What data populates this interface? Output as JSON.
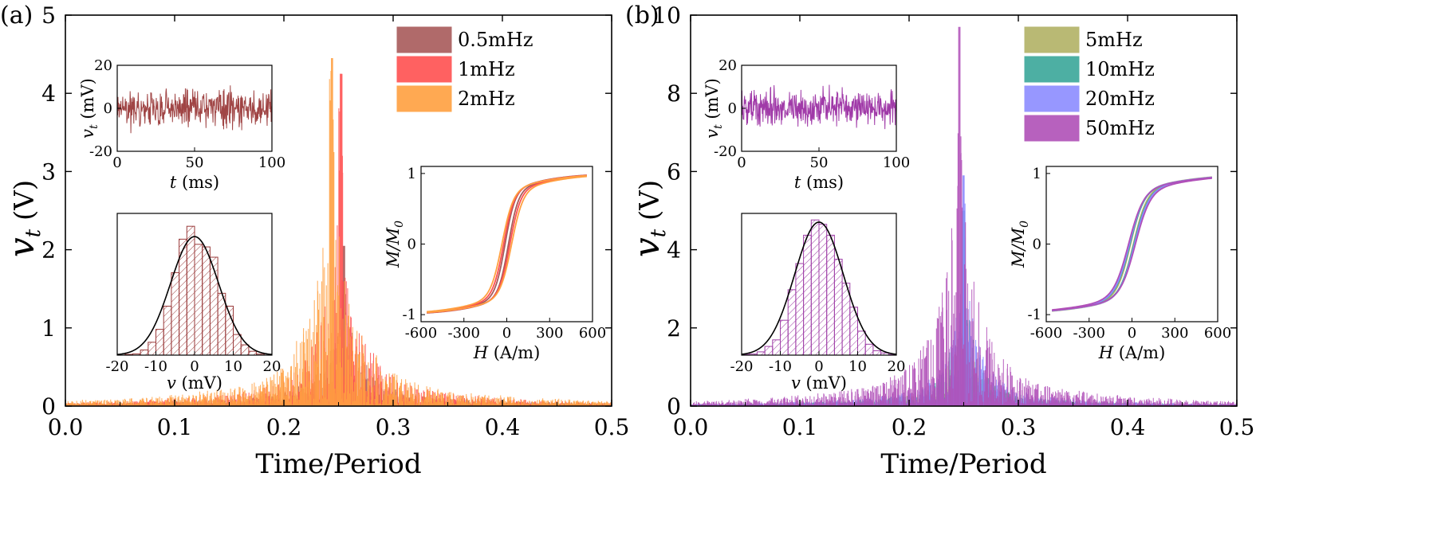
{
  "colors": {
    "c05": "#a85a5a",
    "c1": "#ff5050",
    "c2": "#ffa040",
    "c5": "#b2b266",
    "c10": "#3aa79a",
    "c20": "#8c8cff",
    "c50": "#b050b8",
    "hist_a": "#9a3a3a",
    "hist_b": "#a040a8",
    "trace_a": "#a04545",
    "trace_b": "#a03aa8"
  },
  "chart_data": [
    {
      "panel": "a",
      "panel_label": "(a)",
      "type": "bar",
      "title": "",
      "xlabel": "Time/Period",
      "ylabel": "v_t (V)",
      "ylabel_main": "v",
      "ylabel_sub": "t",
      "ylabel_unit": " (V)",
      "xlim": [
        0,
        0.5
      ],
      "ylim": [
        0,
        5
      ],
      "xticks": [
        "0.0",
        "0.1",
        "0.2",
        "0.3",
        "0.4",
        "0.5"
      ],
      "yticks": [
        "0",
        "1",
        "2",
        "3",
        "4",
        "5"
      ],
      "series": [
        {
          "name": "0.5mHz",
          "color_key": "c05",
          "peak_x": 0.255,
          "peak_y": 2.05,
          "width": 0.018
        },
        {
          "name": "1mHz",
          "color_key": "c1",
          "peak_x": 0.252,
          "peak_y": 4.25,
          "width": 0.016
        },
        {
          "name": "2mHz",
          "color_key": "c2",
          "peak_x": 0.244,
          "peak_y": 4.45,
          "width": 0.02
        }
      ],
      "legend": [
        "0.5mHz",
        "1mHz",
        "2mHz"
      ],
      "insets": {
        "trace": {
          "type": "line",
          "xlabel": "t (ms)",
          "xlabel_var": "t",
          "xlabel_unit": " (ms)",
          "ylabel": "v_t (mV)",
          "ylabel_main": "v",
          "ylabel_sub": "t",
          "ylabel_unit": " (mV)",
          "xlim": [
            0,
            100
          ],
          "ylim": [
            -20,
            20
          ],
          "xticks": [
            "0",
            "50",
            "100"
          ],
          "yticks": [
            "-20",
            "0",
            "20"
          ],
          "amplitude_mV": 4.5
        },
        "histogram": {
          "type": "bar",
          "xlabel": "v (mV)",
          "xlabel_var": "v",
          "xlabel_unit": " (mV)",
          "xlim": [
            -20,
            20
          ],
          "xticks": [
            "-20",
            "-10",
            "0",
            "10",
            "20"
          ],
          "bin_width": 2,
          "bins_center": [
            -17,
            -15,
            -13,
            -11,
            -9,
            -7,
            -5,
            -3,
            -1,
            1,
            3,
            5,
            7,
            9,
            11,
            13,
            15,
            17
          ],
          "counts": [
            0.3,
            0.5,
            2.0,
            5.0,
            10.0,
            19.0,
            32.0,
            45.0,
            50.0,
            43.0,
            42.0,
            38.0,
            24.0,
            19.0,
            8.0,
            4.0,
            1.5,
            0.4
          ],
          "ymax": 55,
          "fit_sigma_mV": 6.2,
          "fit_peak": 46
        },
        "hysteresis": {
          "type": "line",
          "xlabel": "H (A/m)",
          "xlabel_var": "H",
          "xlabel_unit": " (A/m)",
          "ylabel": "M/M_0",
          "ylabel_main": "M/M",
          "ylabel_sub": "0",
          "xlim": [
            -600,
            600
          ],
          "ylim": [
            -1.1,
            1.1
          ],
          "xticks": [
            "-600",
            "-300",
            "0",
            "300",
            "600"
          ],
          "yticks": [
            "-1",
            "0",
            "1"
          ],
          "curves": [
            {
              "color_key": "c05",
              "hc": 12,
              "a": 70
            },
            {
              "color_key": "c1",
              "hc": 22,
              "a": 75
            },
            {
              "color_key": "c2",
              "hc": 34,
              "a": 80
            }
          ]
        }
      }
    },
    {
      "panel": "b",
      "panel_label": "(b)",
      "type": "bar",
      "title": "",
      "xlabel": "Time/Period",
      "ylabel": "v_t (V)",
      "ylabel_main": "v",
      "ylabel_sub": "t",
      "ylabel_unit": " (V)",
      "xlim": [
        0,
        0.5
      ],
      "ylim": [
        0,
        10
      ],
      "xticks": [
        "0.0",
        "0.1",
        "0.2",
        "0.3",
        "0.4",
        "0.5"
      ],
      "yticks": [
        "0",
        "2",
        "4",
        "6",
        "8",
        "10"
      ],
      "series": [
        {
          "name": "5mHz",
          "color_key": "c5",
          "peak_x": 0.25,
          "peak_y": 4.3,
          "width": 0.012
        },
        {
          "name": "10mHz",
          "color_key": "c10",
          "peak_x": 0.25,
          "peak_y": 5.0,
          "width": 0.012
        },
        {
          "name": "20mHz",
          "color_key": "c20",
          "peak_x": 0.25,
          "peak_y": 5.9,
          "width": 0.013
        },
        {
          "name": "50mHz",
          "color_key": "c50",
          "peak_x": 0.246,
          "peak_y": 9.7,
          "width": 0.018
        }
      ],
      "legend": [
        "5mHz",
        "10mHz",
        "20mHz",
        "50mHz"
      ],
      "insets": {
        "trace": {
          "type": "line",
          "xlabel": "t (ms)",
          "xlabel_var": "t",
          "xlabel_unit": " (ms)",
          "ylabel": "v_t (mV)",
          "ylabel_main": "v",
          "ylabel_sub": "t",
          "ylabel_unit": " (mV)",
          "xlim": [
            0,
            100
          ],
          "ylim": [
            -20,
            20
          ],
          "xticks": [
            "0",
            "50",
            "100"
          ],
          "yticks": [
            "-20",
            "0",
            "20"
          ],
          "amplitude_mV": 4.5
        },
        "histogram": {
          "type": "bar",
          "xlabel": "v (mV)",
          "xlabel_var": "v",
          "xlabel_unit": " (mV)",
          "xlim": [
            -20,
            20
          ],
          "xticks": [
            "-20",
            "-10",
            "0",
            "10",
            "20"
          ],
          "bin_width": 2,
          "bins_center": [
            -19,
            -17,
            -15,
            -13,
            -11,
            -9,
            -7,
            -5,
            -3,
            -1,
            1,
            3,
            5,
            7,
            9,
            11,
            13,
            15,
            17,
            19
          ],
          "counts": [
            0.3,
            0.5,
            1.5,
            4.0,
            7.0,
            16.0,
            30.0,
            42.0,
            55.0,
            62.0,
            60.0,
            55.0,
            44.0,
            33.0,
            22.0,
            11.0,
            5.0,
            2.0,
            1.0,
            0.3
          ],
          "ymax": 65,
          "fit_sigma_mV": 6.3,
          "fit_peak": 61
        },
        "hysteresis": {
          "type": "line",
          "xlabel": "H (A/m)",
          "xlabel_var": "H",
          "xlabel_unit": " (A/m)",
          "ylabel": "M/M_0",
          "ylabel_main": "M/M",
          "ylabel_sub": "0",
          "xlim": [
            -600,
            600
          ],
          "ylim": [
            -1.1,
            1.1
          ],
          "xticks": [
            "-600",
            "-300",
            "0",
            "300",
            "600"
          ],
          "yticks": [
            "-1",
            "0",
            "1"
          ],
          "curves": [
            {
              "color_key": "c5",
              "hc": 10,
              "a": 95
            },
            {
              "color_key": "c10",
              "hc": 14,
              "a": 100
            },
            {
              "color_key": "c20",
              "hc": 18,
              "a": 100
            },
            {
              "color_key": "c50",
              "hc": 24,
              "a": 105
            }
          ]
        }
      }
    }
  ]
}
